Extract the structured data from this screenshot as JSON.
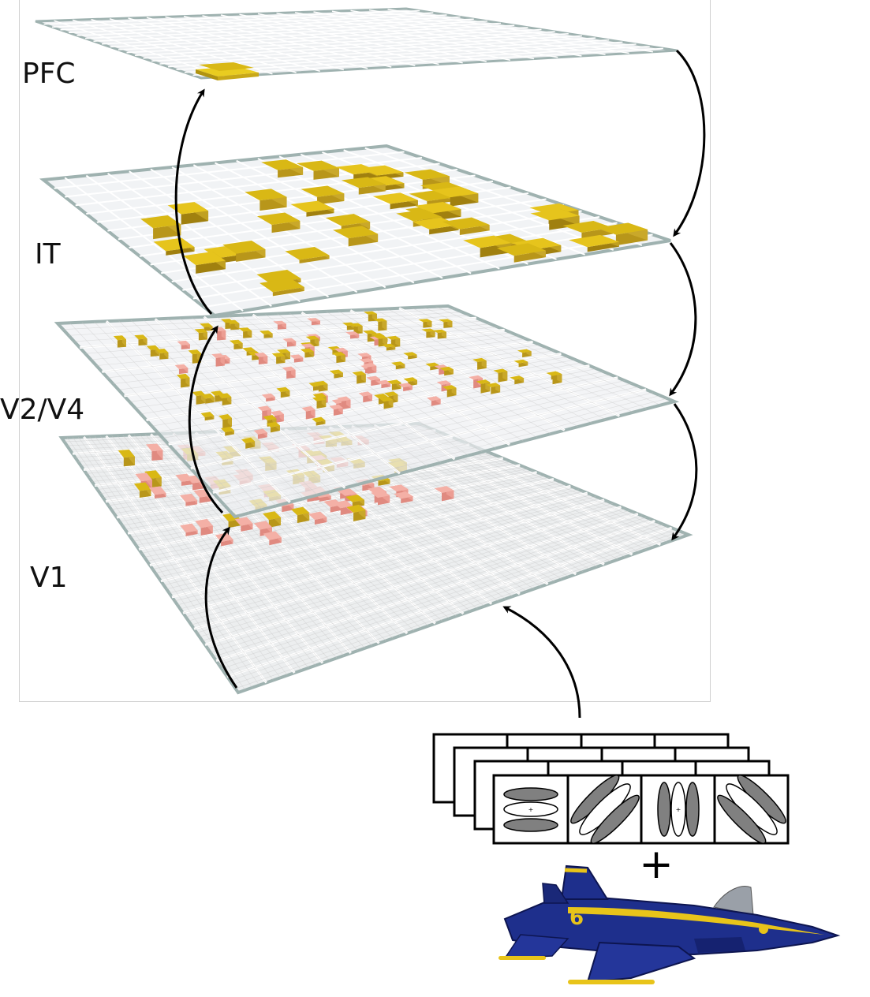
{
  "layers": [
    {
      "key": "pfc",
      "label": "PFC"
    },
    {
      "key": "it",
      "label": "IT"
    },
    {
      "key": "v2v4",
      "label": "V2/V4"
    },
    {
      "key": "v1",
      "label": "V1"
    }
  ],
  "symbols": {
    "plus": "+"
  },
  "colors": {
    "plane_fill": "#eef0f2",
    "plane_edge": "#9fb2b0",
    "grid_line": "#ffffff",
    "unit_gold": "#d6b400",
    "unit_gold_side": "#a88a10",
    "unit_pink": "#f2a9a0",
    "arrow": "#000000",
    "gabor_fill": "#808080",
    "jet_blue": "#1e2f8c",
    "jet_yellow": "#e8c41a"
  },
  "icons": {
    "arrow": "curved-arrow-icon",
    "filter": "gabor-filter-icon",
    "jet": "fighter-jet-icon"
  }
}
